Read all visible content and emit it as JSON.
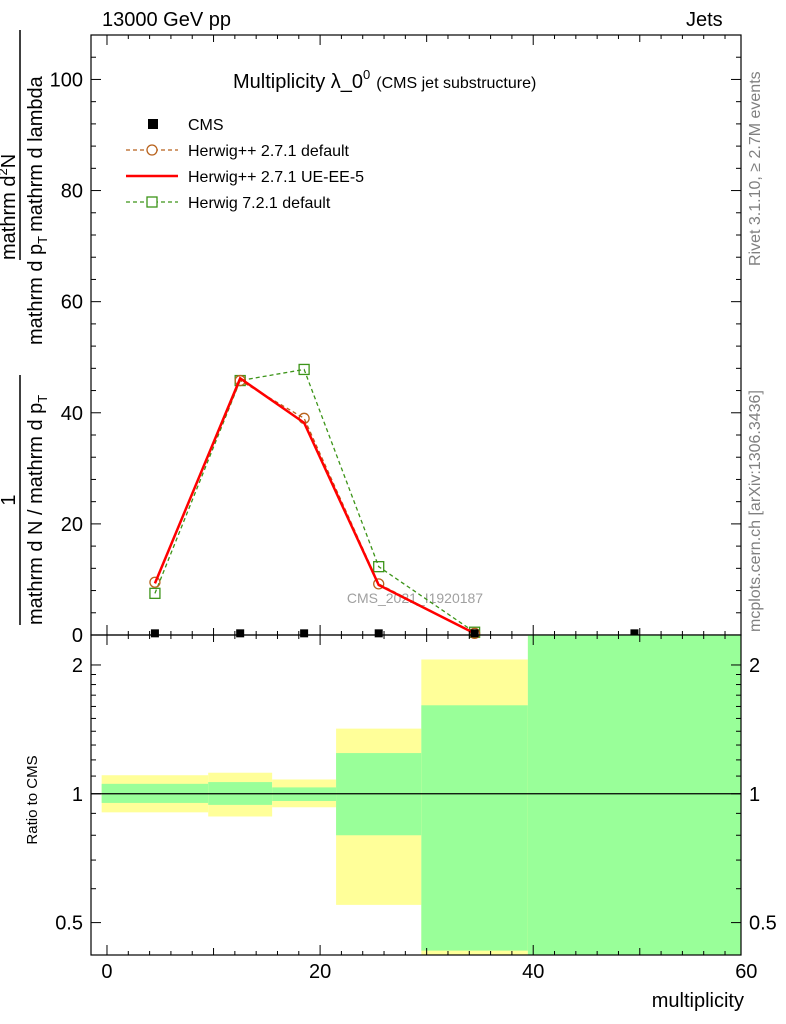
{
  "header": {
    "energy_label": "13000 GeV pp",
    "category_label": "Jets"
  },
  "side_labels": {
    "rivet": "Rivet 3.1.10, ≥ 2.7M events",
    "mcplots": "mcplots.cern.ch [arXiv:1306.3436]"
  },
  "colors": {
    "cms": "#000000",
    "herwigpp_default": "#b8621c",
    "herwigpp_ueee5": "#ff0000",
    "herwig721": "#3c9418",
    "band_yellow": "#ffff99",
    "band_green": "#99ff99"
  },
  "chart_data": [
    {
      "type": "line",
      "title_main": "Multiplicity λ_0",
      "title_sup": "0",
      "title_sub": "(CMS jet substructure)",
      "ylabel_frac_num": "1",
      "ylabel_frac_den": "mathrm d N / mathrm d p",
      "ylabel_frac_den_sub": "T",
      "ylabel_frac_den_rest": "mathrm d p",
      "ylabel_frac_den_rest2": "mathrm d lambda",
      "ylabel_num2": "mathrm d",
      "ylabel_num2_sup": "2",
      "ylabel_num2_rest": "N",
      "ylim": [
        0,
        108
      ],
      "yticks": [
        0,
        20,
        40,
        60,
        80,
        100
      ],
      "xlim": [
        -1.5,
        59.5
      ],
      "watermark": "CMS_2021_I1920187",
      "legend_position": "top-left",
      "series": [
        {
          "name": "CMS",
          "style": "marker",
          "x": [
            4.5,
            12.5,
            18.5,
            25.5,
            34.5,
            49.5
          ],
          "y": [
            0.3,
            0.3,
            0.3,
            0.3,
            0.3,
            0.3
          ]
        },
        {
          "name": "Herwig++ 2.7.1 default",
          "style": "dashed-circle",
          "x": [
            4.5,
            12.5,
            18.5,
            25.5,
            34.5
          ],
          "y": [
            9.5,
            45.8,
            39.0,
            9.2,
            0.3
          ]
        },
        {
          "name": "Herwig++ 2.7.1 UE-EE-5",
          "style": "solid",
          "x": [
            4.5,
            12.5,
            18.5,
            25.5,
            34.5
          ],
          "y": [
            9.3,
            46.2,
            38.2,
            9.0,
            0.3
          ]
        },
        {
          "name": "Herwig 7.2.1 default",
          "style": "dashed-square",
          "x": [
            4.5,
            12.5,
            18.5,
            25.5,
            34.5
          ],
          "y": [
            7.5,
            45.8,
            47.8,
            12.3,
            0.5
          ]
        }
      ]
    },
    {
      "type": "area",
      "ylabel": "Ratio to CMS",
      "xlabel": "multiplicity",
      "ylim": [
        0.42,
        2.35
      ],
      "yscale": "log",
      "yticks": [
        "0.5",
        "1",
        "2"
      ],
      "xlim": [
        -1.5,
        59.5
      ],
      "xticks": [
        "0",
        "20",
        "40",
        "60"
      ],
      "reference_line": 1,
      "bands": [
        {
          "x": [
            -0.5,
            9.5
          ],
          "yellow": [
            0.905,
            1.105
          ],
          "green": [
            0.952,
            1.055
          ]
        },
        {
          "x": [
            9.5,
            15.5
          ],
          "yellow": [
            0.885,
            1.12
          ],
          "green": [
            0.942,
            1.065
          ]
        },
        {
          "x": [
            15.5,
            21.5
          ],
          "yellow": [
            0.93,
            1.08
          ],
          "green": [
            0.962,
            1.035
          ]
        },
        {
          "x": [
            21.5,
            29.5
          ],
          "yellow": [
            0.55,
            1.42
          ],
          "green": [
            0.8,
            1.245
          ]
        },
        {
          "x": [
            29.5,
            39.5
          ],
          "yellow": [
            0.38,
            2.06
          ],
          "green": [
            0.43,
            1.61
          ]
        },
        {
          "x": [
            39.5,
            59.5
          ],
          "yellow": [
            0.38,
            2.35
          ],
          "green": [
            0.38,
            2.35
          ]
        }
      ]
    }
  ]
}
